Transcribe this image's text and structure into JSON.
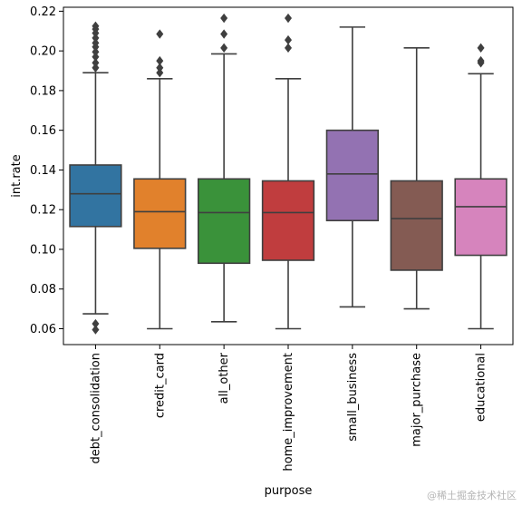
{
  "chart_data": {
    "type": "box",
    "title": "",
    "xlabel": "purpose",
    "ylabel": "int.rate",
    "ylim": [
      0.052,
      0.222
    ],
    "yticks": [
      0.06,
      0.08,
      0.1,
      0.12,
      0.14,
      0.16,
      0.18,
      0.2,
      0.22
    ],
    "ytick_labels": [
      "0.06",
      "0.08",
      "0.10",
      "0.12",
      "0.14",
      "0.16",
      "0.18",
      "0.20",
      "0.22"
    ],
    "grid": false,
    "categories": [
      {
        "name": "debt_consolidation",
        "color": "#3274a1",
        "whisker_low": 0.0675,
        "q1": 0.1115,
        "median": 0.128,
        "q3": 0.1425,
        "whisker_high": 0.189,
        "outliers": [
          0.0595,
          0.0625,
          0.1915,
          0.194,
          0.197,
          0.1995,
          0.202,
          0.204,
          0.2065,
          0.209,
          0.211,
          0.2125
        ]
      },
      {
        "name": "credit_card",
        "color": "#e1812c",
        "whisker_low": 0.06,
        "q1": 0.1005,
        "median": 0.119,
        "q3": 0.1355,
        "whisker_high": 0.186,
        "outliers": [
          0.189,
          0.1915,
          0.195,
          0.2085
        ]
      },
      {
        "name": "all_other",
        "color": "#3a923a",
        "whisker_low": 0.0635,
        "q1": 0.093,
        "median": 0.1185,
        "q3": 0.1355,
        "whisker_high": 0.1985,
        "outliers": [
          0.2015,
          0.2085,
          0.2165
        ]
      },
      {
        "name": "home_improvement",
        "color": "#c03d3e",
        "whisker_low": 0.06,
        "q1": 0.0945,
        "median": 0.1185,
        "q3": 0.1345,
        "whisker_high": 0.186,
        "outliers": [
          0.2015,
          0.2055,
          0.2165
        ]
      },
      {
        "name": "small_business",
        "color": "#9372b2",
        "whisker_low": 0.071,
        "q1": 0.1145,
        "median": 0.138,
        "q3": 0.16,
        "whisker_high": 0.212,
        "outliers": []
      },
      {
        "name": "major_purchase",
        "color": "#845b53",
        "whisker_low": 0.07,
        "q1": 0.0895,
        "median": 0.1155,
        "q3": 0.1345,
        "whisker_high": 0.2015,
        "outliers": []
      },
      {
        "name": "educational",
        "color": "#d684bd",
        "whisker_low": 0.06,
        "q1": 0.097,
        "median": 0.1215,
        "q3": 0.1355,
        "whisker_high": 0.1885,
        "outliers": [
          0.194,
          0.195,
          0.2015
        ]
      }
    ]
  },
  "watermark": "@稀土掘金技术社区"
}
